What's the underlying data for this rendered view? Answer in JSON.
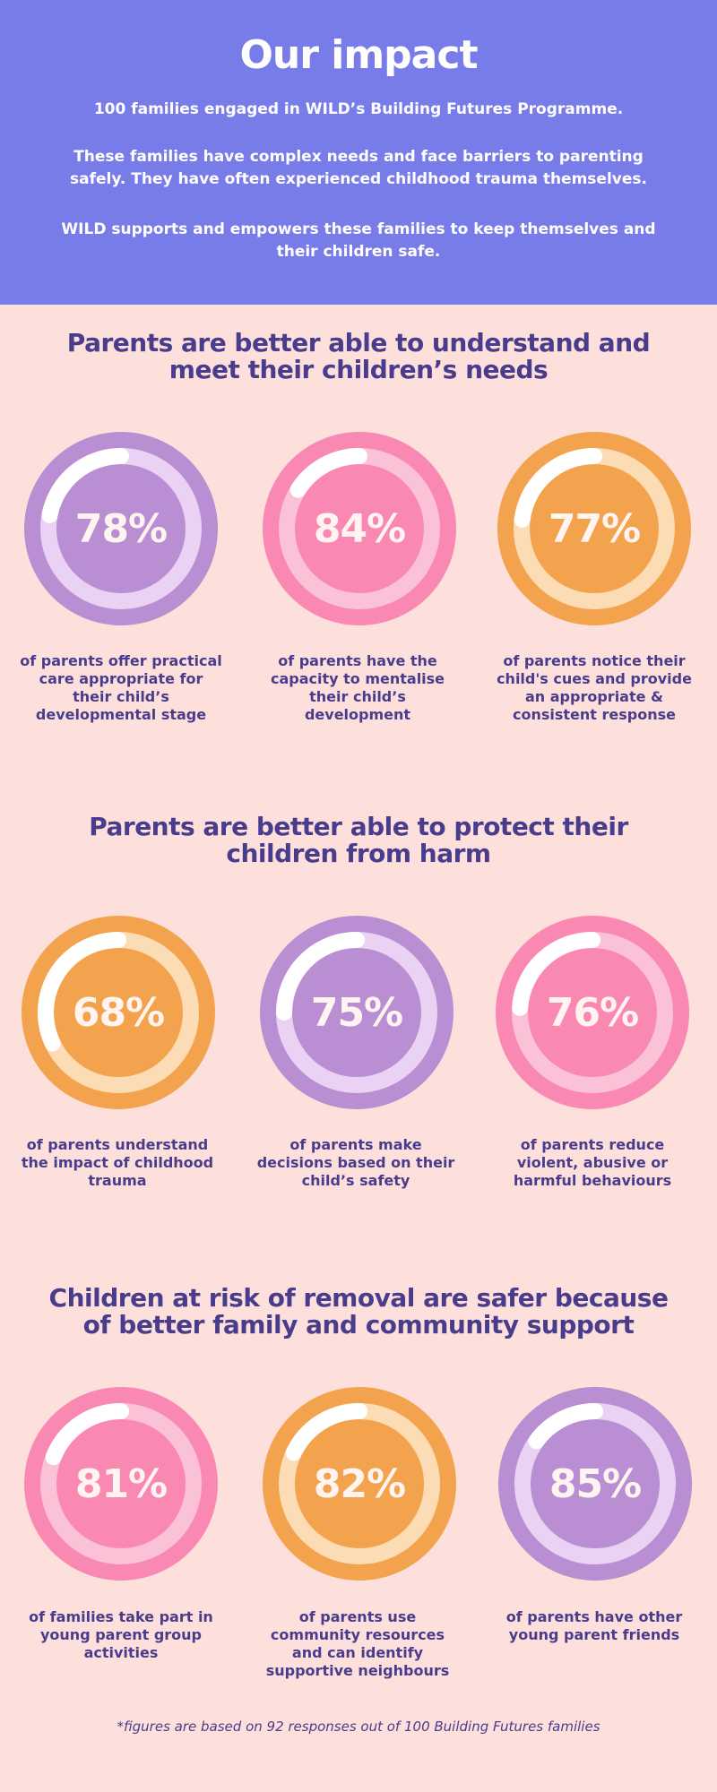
{
  "header": {
    "title": "Our impact",
    "p1": "100 families engaged in WILD’s Building Futures Programme.",
    "p2": "These families have complex needs and face barriers to parenting safely. They have often experienced childhood trauma themselves.",
    "p3": "WILD supports and empowers these families to keep themselves and their children safe."
  },
  "colors": {
    "purple": {
      "outer": "#b98ed2",
      "track": "#e9d2f3",
      "arc": "#ffffff"
    },
    "pink": {
      "outer": "#f989b3",
      "track": "#fbc2d7",
      "arc": "#ffffff"
    },
    "orange": {
      "outer": "#f3a34d",
      "track": "#fcdcb4",
      "arc": "#ffffff"
    }
  },
  "sections": [
    {
      "title": "Parents are better able to understand and meet their children’s needs",
      "stats": [
        {
          "pct": "78%",
          "value": 78,
          "color": "purple",
          "caption": "of parents offer practical care appropriate for their child’s developmental stage"
        },
        {
          "pct": "84%",
          "value": 84,
          "color": "pink",
          "caption": "of parents have the capacity to mentalise their child’s development"
        },
        {
          "pct": "77%",
          "value": 77,
          "color": "orange",
          "caption": "of parents notice their child's cues and provide an appropriate & consistent response"
        }
      ]
    },
    {
      "title": "Parents are better able to protect their children from harm",
      "stats": [
        {
          "pct": "68%",
          "value": 68,
          "color": "orange",
          "caption": "of parents understand the impact of childhood trauma"
        },
        {
          "pct": "75%",
          "value": 75,
          "color": "purple",
          "caption": "of parents make decisions based on their child’s safety"
        },
        {
          "pct": "76%",
          "value": 76,
          "color": "pink",
          "caption": "of parents reduce violent, abusive or harmful behaviours"
        }
      ]
    },
    {
      "title": "Children at risk of removal are safer because of better family and community support",
      "stats": [
        {
          "pct": "81%",
          "value": 81,
          "color": "pink",
          "caption": "of families take part in young parent group activities"
        },
        {
          "pct": "82%",
          "value": 82,
          "color": "orange",
          "caption": "of parents use community resources and can identify supportive neighbours"
        },
        {
          "pct": "85%",
          "value": 85,
          "color": "purple",
          "caption": "of parents have other young parent friends"
        }
      ]
    }
  ],
  "footnote": "*figures are based on 92 responses out of 100 Building Futures families"
}
